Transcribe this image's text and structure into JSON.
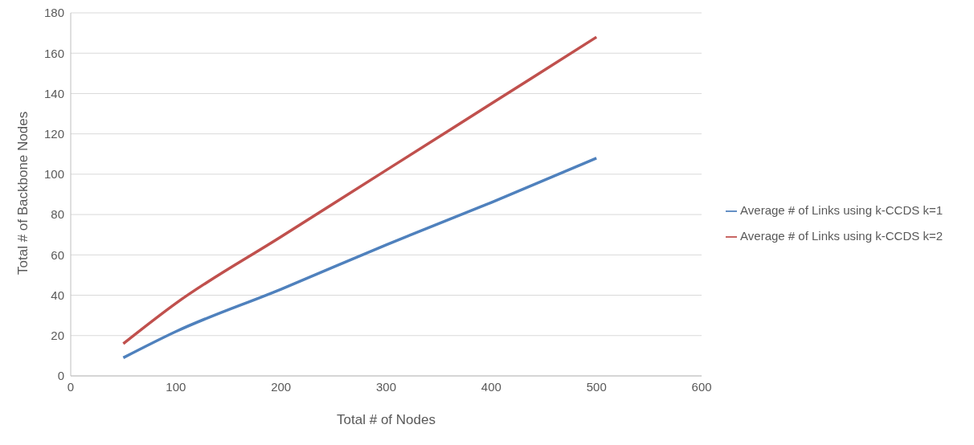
{
  "chart_data": {
    "type": "line",
    "xlabel": "Total # of Nodes",
    "ylabel": "Total # of Backbone Nodes",
    "x": [
      50,
      100,
      200,
      300,
      400,
      500
    ],
    "series": [
      {
        "name": "Average # of Links using k-CCDS k=1",
        "color": "#4f81bd",
        "values": [
          9,
          22,
          43,
          65,
          86,
          108
        ]
      },
      {
        "name": "Average # of Links using k-CCDS k=2",
        "color": "#c0504d",
        "values": [
          16,
          36,
          69,
          102,
          135,
          168
        ]
      }
    ],
    "xlim": [
      0,
      600
    ],
    "xticks": [
      0,
      100,
      200,
      300,
      400,
      500,
      600
    ],
    "ylim": [
      0,
      180
    ],
    "yticks": [
      0,
      20,
      40,
      60,
      80,
      100,
      120,
      140,
      160,
      180
    ],
    "grid": "y",
    "legend": "right",
    "marker": "none",
    "line_style": "solid"
  }
}
